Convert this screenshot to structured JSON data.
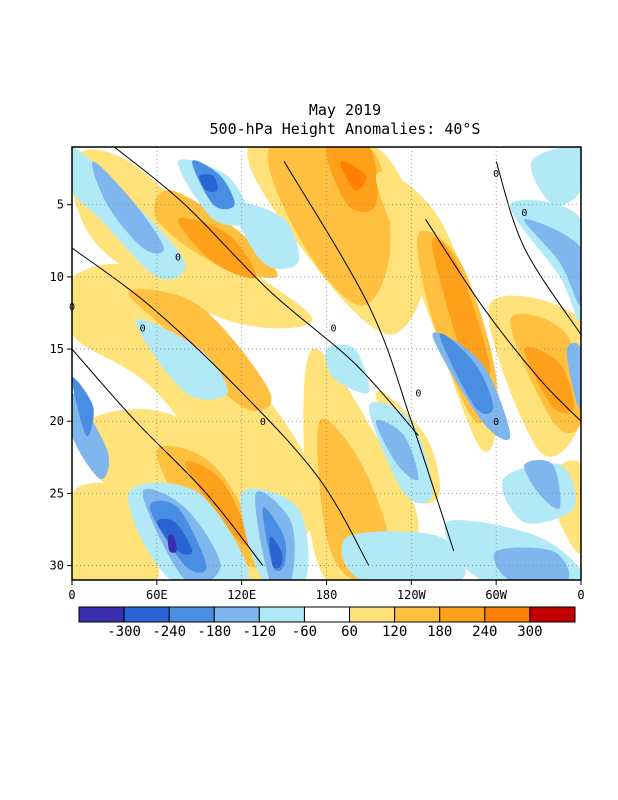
{
  "chart_data": {
    "type": "heatmap",
    "title_line1": "May 2019",
    "title_line2": "500-hPa Height Anomalies: 40°S",
    "x_ticks": [
      "0",
      "60E",
      "120E",
      "180",
      "120W",
      "60W",
      "0"
    ],
    "y_ticks": [
      "5",
      "10",
      "15",
      "20",
      "25",
      "30"
    ],
    "y_range": [
      1,
      31
    ],
    "contour_label": "0",
    "colorbar": {
      "labels": [
        "-300",
        "-240",
        "-180",
        "-120",
        "-60",
        "60",
        "120",
        "180",
        "240",
        "300"
      ],
      "colors": [
        "#3b2fb0",
        "#2a64d4",
        "#4a8ee4",
        "#7fb6ee",
        "#b1eaf6",
        "#ffffff",
        "#ffe27a",
        "#ffc040",
        "#ffa01a",
        "#ff8000",
        "#c00000"
      ]
    },
    "bands": [
      {
        "color": "#ffe27a",
        "pts": [
          [
            0,
            2
          ],
          [
            40,
            2
          ],
          [
            120,
            9
          ],
          [
            170,
            13
          ],
          [
            110,
            13
          ],
          [
            20,
            8
          ]
        ]
      },
      {
        "color": "#ffc040",
        "pts": [
          [
            70,
            4
          ],
          [
            120,
            7
          ],
          [
            145,
            10
          ],
          [
            100,
            9
          ],
          [
            60,
            6
          ]
        ]
      },
      {
        "color": "#ffa01a",
        "pts": [
          [
            75,
            6
          ],
          [
            110,
            7
          ],
          [
            130,
            10
          ],
          [
            100,
            9
          ]
        ]
      },
      {
        "color": "#ffe27a",
        "pts": [
          [
            125,
            1
          ],
          [
            215,
            1
          ],
          [
            250,
            9
          ],
          [
            225,
            14
          ],
          [
            170,
            9
          ]
        ]
      },
      {
        "color": "#ffc040",
        "pts": [
          [
            140,
            1
          ],
          [
            210,
            1
          ],
          [
            225,
            8
          ],
          [
            205,
            12
          ],
          [
            165,
            8
          ]
        ]
      },
      {
        "color": "#ffa01a",
        "pts": [
          [
            180,
            1
          ],
          [
            210,
            1
          ],
          [
            215,
            5
          ],
          [
            195,
            5
          ]
        ]
      },
      {
        "color": "#ff8000",
        "pts": [
          [
            190,
            2
          ],
          [
            208,
            3
          ],
          [
            200,
            4
          ]
        ]
      },
      {
        "color": "#ffe27a",
        "pts": [
          [
            215,
            3
          ],
          [
            260,
            6
          ],
          [
            300,
            17
          ],
          [
            290,
            22
          ],
          [
            250,
            12
          ]
        ]
      },
      {
        "color": "#ffc040",
        "pts": [
          [
            245,
            7
          ],
          [
            275,
            9
          ],
          [
            300,
            17
          ],
          [
            285,
            20
          ],
          [
            255,
            13
          ]
        ]
      },
      {
        "color": "#ffa01a",
        "pts": [
          [
            255,
            8
          ],
          [
            272,
            9
          ],
          [
            295,
            16
          ],
          [
            285,
            18
          ]
        ]
      },
      {
        "color": "#ffe27a",
        "pts": [
          [
            295,
            12
          ],
          [
            360,
            13
          ],
          [
            360,
            20
          ],
          [
            330,
            22
          ]
        ]
      },
      {
        "color": "#ffc040",
        "pts": [
          [
            310,
            13
          ],
          [
            350,
            14
          ],
          [
            360,
            20
          ],
          [
            340,
            20
          ]
        ]
      },
      {
        "color": "#ffa01a",
        "pts": [
          [
            320,
            15
          ],
          [
            345,
            16
          ],
          [
            355,
            19
          ],
          [
            340,
            19
          ]
        ]
      },
      {
        "color": "#ffe27a",
        "pts": [
          [
            0,
            10
          ],
          [
            60,
            10
          ],
          [
            150,
            20
          ],
          [
            175,
            26
          ],
          [
            140,
            28
          ],
          [
            60,
            18
          ],
          [
            0,
            14
          ]
        ]
      },
      {
        "color": "#ffc040",
        "pts": [
          [
            40,
            11
          ],
          [
            90,
            12
          ],
          [
            140,
            18
          ],
          [
            120,
            19
          ],
          [
            70,
            14
          ]
        ]
      },
      {
        "color": "#ffe27a",
        "pts": [
          [
            10,
            20
          ],
          [
            80,
            20
          ],
          [
            150,
            29
          ],
          [
            150,
            31
          ],
          [
            100,
            31
          ],
          [
            20,
            24
          ]
        ]
      },
      {
        "color": "#ffc040",
        "pts": [
          [
            60,
            22
          ],
          [
            100,
            23
          ],
          [
            135,
            29
          ],
          [
            125,
            30
          ],
          [
            85,
            27
          ]
        ]
      },
      {
        "color": "#ffa01a",
        "pts": [
          [
            80,
            23
          ],
          [
            105,
            24
          ],
          [
            125,
            28
          ],
          [
            115,
            28
          ]
        ]
      },
      {
        "color": "#ffe27a",
        "pts": [
          [
            170,
            15
          ],
          [
            215,
            21
          ],
          [
            245,
            27
          ],
          [
            225,
            31
          ],
          [
            180,
            31
          ],
          [
            165,
            24
          ]
        ]
      },
      {
        "color": "#ffc040",
        "pts": [
          [
            175,
            20
          ],
          [
            205,
            23
          ],
          [
            225,
            29
          ],
          [
            200,
            31
          ],
          [
            180,
            28
          ]
        ]
      },
      {
        "color": "#ffe27a",
        "pts": [
          [
            0,
            25
          ],
          [
            40,
            25
          ],
          [
            60,
            31
          ],
          [
            0,
            31
          ]
        ]
      },
      {
        "color": "#ffe27a",
        "pts": [
          [
            215,
            18
          ],
          [
            250,
            21
          ],
          [
            260,
            25
          ],
          [
            240,
            25
          ]
        ]
      },
      {
        "color": "#ffe27a",
        "pts": [
          [
            335,
            24
          ],
          [
            360,
            23
          ],
          [
            360,
            29
          ],
          [
            345,
            27
          ]
        ]
      },
      {
        "color": "#b1eaf6",
        "pts": [
          [
            0,
            1
          ],
          [
            45,
            5
          ],
          [
            80,
            9
          ],
          [
            60,
            10
          ],
          [
            20,
            6
          ],
          [
            0,
            4
          ]
        ]
      },
      {
        "color": "#7fb6ee",
        "pts": [
          [
            15,
            2
          ],
          [
            45,
            5
          ],
          [
            65,
            8
          ],
          [
            50,
            8
          ],
          [
            25,
            5
          ]
        ]
      },
      {
        "color": "#b1eaf6",
        "pts": [
          [
            75,
            2
          ],
          [
            110,
            3
          ],
          [
            125,
            6
          ],
          [
            100,
            6
          ]
        ]
      },
      {
        "color": "#4a8ee4",
        "pts": [
          [
            85,
            2
          ],
          [
            105,
            3
          ],
          [
            115,
            5
          ],
          [
            100,
            5
          ]
        ]
      },
      {
        "color": "#2a64d4",
        "pts": [
          [
            90,
            3
          ],
          [
            100,
            3
          ],
          [
            103,
            4
          ],
          [
            95,
            4
          ]
        ]
      },
      {
        "color": "#b1eaf6",
        "pts": [
          [
            115,
            5
          ],
          [
            150,
            6
          ],
          [
            160,
            9
          ],
          [
            135,
            9
          ]
        ]
      },
      {
        "color": "#7fb6ee",
        "pts": [
          [
            255,
            14
          ],
          [
            290,
            16
          ],
          [
            310,
            21
          ],
          [
            290,
            20
          ]
        ]
      },
      {
        "color": "#4a8ee4",
        "pts": [
          [
            260,
            14
          ],
          [
            285,
            16
          ],
          [
            298,
            19
          ],
          [
            285,
            19
          ]
        ]
      },
      {
        "color": "#b1eaf6",
        "pts": [
          [
            325,
            2
          ],
          [
            360,
            1
          ],
          [
            360,
            4
          ],
          [
            340,
            5
          ]
        ]
      },
      {
        "color": "#b1eaf6",
        "pts": [
          [
            310,
            5
          ],
          [
            360,
            6
          ],
          [
            360,
            13
          ],
          [
            345,
            10
          ]
        ]
      },
      {
        "color": "#7fb6ee",
        "pts": [
          [
            320,
            6
          ],
          [
            360,
            8
          ],
          [
            360,
            12
          ],
          [
            345,
            9
          ]
        ]
      },
      {
        "color": "#7fb6ee",
        "pts": [
          [
            350,
            15
          ],
          [
            360,
            15
          ],
          [
            360,
            19
          ],
          [
            355,
            18
          ]
        ]
      },
      {
        "color": "#b1eaf6",
        "pts": [
          [
            45,
            13
          ],
          [
            90,
            15
          ],
          [
            110,
            18
          ],
          [
            80,
            18
          ]
        ]
      },
      {
        "color": "#7fb6ee",
        "pts": [
          [
            0,
            18
          ],
          [
            25,
            22
          ],
          [
            20,
            24
          ],
          [
            0,
            21
          ]
        ]
      },
      {
        "color": "#4a8ee4",
        "pts": [
          [
            0,
            17
          ],
          [
            15,
            19
          ],
          [
            10,
            21
          ]
        ]
      },
      {
        "color": "#b1eaf6",
        "pts": [
          [
            180,
            15
          ],
          [
            200,
            15
          ],
          [
            210,
            18
          ],
          [
            185,
            17
          ]
        ]
      },
      {
        "color": "#b1eaf6",
        "pts": [
          [
            210,
            19
          ],
          [
            240,
            20
          ],
          [
            255,
            25
          ],
          [
            235,
            25
          ]
        ]
      },
      {
        "color": "#7fb6ee",
        "pts": [
          [
            215,
            20
          ],
          [
            235,
            21
          ],
          [
            245,
            24
          ],
          [
            230,
            23
          ]
        ]
      },
      {
        "color": "#b1eaf6",
        "pts": [
          [
            40,
            25
          ],
          [
            90,
            25
          ],
          [
            125,
            31
          ],
          [
            70,
            31
          ]
        ]
      },
      {
        "color": "#7fb6ee",
        "pts": [
          [
            50,
            25
          ],
          [
            80,
            26
          ],
          [
            105,
            30
          ],
          [
            80,
            31
          ]
        ]
      },
      {
        "color": "#4a8ee4",
        "pts": [
          [
            55,
            26
          ],
          [
            75,
            26
          ],
          [
            95,
            30
          ],
          [
            80,
            30
          ]
        ]
      },
      {
        "color": "#2a64d4",
        "pts": [
          [
            60,
            27
          ],
          [
            73,
            27
          ],
          [
            85,
            29
          ],
          [
            75,
            29
          ]
        ]
      },
      {
        "color": "#3b2fb0",
        "pts": [
          [
            68,
            28
          ],
          [
            72,
            28
          ],
          [
            74,
            29
          ],
          [
            69,
            29
          ]
        ]
      },
      {
        "color": "#b1eaf6",
        "pts": [
          [
            120,
            25
          ],
          [
            160,
            26
          ],
          [
            165,
            31
          ],
          [
            135,
            31
          ]
        ]
      },
      {
        "color": "#7fb6ee",
        "pts": [
          [
            130,
            25
          ],
          [
            155,
            27
          ],
          [
            155,
            31
          ],
          [
            140,
            31
          ]
        ]
      },
      {
        "color": "#4a8ee4",
        "pts": [
          [
            135,
            26
          ],
          [
            150,
            28
          ],
          [
            150,
            30
          ],
          [
            142,
            30
          ]
        ]
      },
      {
        "color": "#2a64d4",
        "pts": [
          [
            140,
            28
          ],
          [
            148,
            29
          ],
          [
            148,
            30
          ],
          [
            142,
            30
          ]
        ]
      },
      {
        "color": "#b1eaf6",
        "pts": [
          [
            195,
            28
          ],
          [
            260,
            28
          ],
          [
            275,
            31
          ],
          [
            205,
            31
          ]
        ]
      },
      {
        "color": "#b1eaf6",
        "pts": [
          [
            265,
            27
          ],
          [
            330,
            28
          ],
          [
            360,
            31
          ],
          [
            290,
            31
          ]
        ]
      },
      {
        "color": "#7fb6ee",
        "pts": [
          [
            300,
            29
          ],
          [
            340,
            29
          ],
          [
            350,
            31
          ],
          [
            310,
            31
          ]
        ]
      },
      {
        "color": "#b1eaf6",
        "pts": [
          [
            305,
            24
          ],
          [
            345,
            23
          ],
          [
            355,
            26
          ],
          [
            320,
            27
          ]
        ]
      },
      {
        "color": "#7fb6ee",
        "pts": [
          [
            320,
            23
          ],
          [
            340,
            23
          ],
          [
            345,
            26
          ],
          [
            330,
            25
          ]
        ]
      }
    ],
    "contours": [
      [
        [
          30,
          1
        ],
        [
          80,
          5
        ],
        [
          140,
          11
        ],
        [
          200,
          16
        ],
        [
          245,
          21
        ]
      ],
      [
        [
          0,
          8
        ],
        [
          55,
          12
        ],
        [
          120,
          18
        ],
        [
          175,
          24
        ],
        [
          210,
          30
        ]
      ],
      [
        [
          0,
          15
        ],
        [
          45,
          20
        ],
        [
          95,
          25
        ],
        [
          135,
          30
        ]
      ],
      [
        [
          150,
          2
        ],
        [
          210,
          12
        ],
        [
          240,
          20
        ],
        [
          270,
          29
        ]
      ],
      [
        [
          250,
          6
        ],
        [
          290,
          12
        ],
        [
          330,
          17
        ],
        [
          360,
          20
        ]
      ],
      [
        [
          300,
          2
        ],
        [
          320,
          8
        ],
        [
          360,
          14
        ]
      ]
    ],
    "zero_labels": [
      [
        75,
        8.6
      ],
      [
        50,
        13.5
      ],
      [
        185,
        13.5
      ],
      [
        245,
        18
      ],
      [
        135,
        20
      ],
      [
        300,
        20
      ],
      [
        300,
        2.8
      ],
      [
        320,
        5.5
      ],
      [
        0,
        12
      ]
    ]
  }
}
